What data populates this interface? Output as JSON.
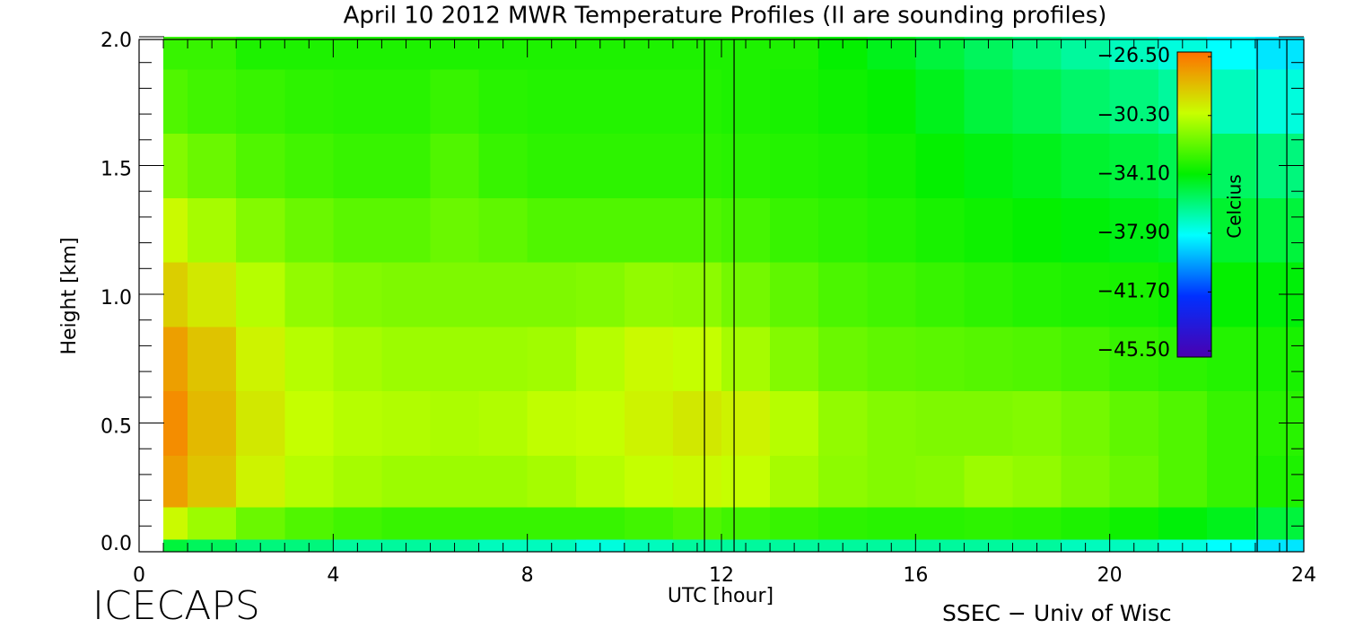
{
  "chart_data": {
    "type": "contour",
    "title": "April 10 2012 MWR Temperature Profiles (II are sounding profiles)",
    "x_label": "UTC [hour]",
    "y_label": "Height [km]",
    "annotations": [
      "ICECAPS",
      "SSEC − Univ of Wisc"
    ],
    "xlim": [
      0,
      24
    ],
    "xticks": [
      0,
      4,
      8,
      12,
      16,
      20,
      24
    ],
    "ylim": [
      0,
      2
    ],
    "yticks": [
      {
        "value": 0,
        "label": "0.0"
      },
      0.5,
      {
        "value": 1,
        "label": "1.0"
      },
      1.5,
      {
        "value": 2,
        "label": "2.0"
      }
    ],
    "minor_ticks": true,
    "x": [
      0.5,
      1.5,
      2.5,
      3.5,
      4.5,
      5.5,
      6.5,
      7.5,
      8.5,
      9.5,
      10.5,
      11.5,
      12.5,
      13.5,
      14.5,
      15.5,
      16.5,
      17.5,
      18.5,
      19.5,
      20.5,
      21.5,
      22.5,
      23.5
    ],
    "y": [
      0,
      0.1,
      0.25,
      0.5,
      0.75,
      1.0,
      1.25,
      1.5,
      1.75,
      2.0
    ],
    "z": [
      [
        -35,
        -35.5,
        -36,
        -36,
        -36.5,
        -36.5,
        -36.5,
        -37,
        -37,
        -37.5,
        -37,
        -36.5,
        -36.5,
        -36.5,
        -36.5,
        -36.5,
        -36.5,
        -36.5,
        -36.5,
        -37,
        -37,
        -37.5,
        -38,
        -38.5
      ],
      [
        -30,
        -31,
        -32,
        -32.5,
        -32.8,
        -33,
        -33,
        -33,
        -33,
        -33,
        -32.8,
        -32.5,
        -32.8,
        -33,
        -33.2,
        -33.3,
        -33.3,
        -33.2,
        -33.3,
        -33.5,
        -33.8,
        -34.2,
        -34.5,
        -35
      ],
      [
        -27.5,
        -28.5,
        -29.8,
        -30.5,
        -30.8,
        -31,
        -31,
        -31,
        -30.8,
        -30.5,
        -30.2,
        -30,
        -30.2,
        -30.8,
        -31.3,
        -31.5,
        -31.4,
        -31,
        -31.2,
        -31.6,
        -32,
        -32.5,
        -33,
        -33.5
      ],
      [
        -27,
        -28.2,
        -29.5,
        -30.2,
        -30.5,
        -30.6,
        -30.7,
        -30.6,
        -30.3,
        -30.2,
        -29.8,
        -29.5,
        -29.8,
        -30.5,
        -31.2,
        -31.5,
        -31.6,
        -31.6,
        -31.5,
        -31.8,
        -32.2,
        -32.5,
        -33,
        -33.3
      ],
      [
        -27.5,
        -28.5,
        -29.8,
        -30.5,
        -30.8,
        -31,
        -31,
        -31,
        -30.9,
        -30.5,
        -30,
        -30.2,
        -30.8,
        -31.5,
        -32,
        -32.2,
        -32.3,
        -32.4,
        -32.5,
        -32.7,
        -33,
        -33.2,
        -33.4,
        -33.6
      ],
      [
        -28.8,
        -29.5,
        -30.5,
        -31.2,
        -31.5,
        -31.6,
        -31.6,
        -31.6,
        -31.6,
        -31.5,
        -31.2,
        -31.3,
        -31.8,
        -32.2,
        -32.6,
        -32.8,
        -33,
        -33.2,
        -33.4,
        -33.5,
        -33.6,
        -33.8,
        -34,
        -34.2
      ],
      [
        -30,
        -30.8,
        -31.5,
        -32,
        -32.3,
        -32.3,
        -32,
        -32.2,
        -32.5,
        -32.5,
        -32.5,
        -32.5,
        -32.7,
        -33,
        -33.2,
        -33.4,
        -33.6,
        -33.8,
        -34,
        -34.2,
        -34.4,
        -34.6,
        -34.8,
        -35
      ],
      [
        -31.5,
        -32,
        -32.5,
        -32.8,
        -33,
        -33,
        -32.5,
        -33,
        -33.2,
        -33.2,
        -33.2,
        -33.2,
        -33.3,
        -33.4,
        -33.5,
        -33.7,
        -34,
        -34.3,
        -34.5,
        -34.8,
        -35,
        -35.3,
        -35.6,
        -36
      ],
      [
        -32.5,
        -32.8,
        -33,
        -33.2,
        -33.3,
        -33.3,
        -33,
        -33.3,
        -33.4,
        -33.4,
        -33.4,
        -33.4,
        -33.5,
        -33.6,
        -33.8,
        -34,
        -34.5,
        -35,
        -35.3,
        -35.7,
        -36,
        -36.5,
        -37,
        -37.5
      ],
      [
        -33,
        -33,
        -33.5,
        -33.5,
        -33.5,
        -33.5,
        -33.5,
        -33.5,
        -33.5,
        -33.5,
        -33.5,
        -33.5,
        -33.5,
        -33.5,
        -34,
        -34.5,
        -35,
        -35.5,
        -36,
        -36.5,
        -37,
        -37.5,
        -38,
        -38.5
      ]
    ],
    "soundings": [
      11.65,
      12.26,
      23.04,
      23.65
    ],
    "zlim": [
      -45.9,
      -26.2
    ],
    "colormap": [
      "#4a00b0",
      "#0030ff",
      "#00ffff",
      "#00f000",
      "#c8ff00",
      "#ff7000"
    ],
    "colorbar": {
      "label": "Celcius",
      "ticks": [
        {
          "value": -26.5,
          "label": "−26.50"
        },
        {
          "value": -30.3,
          "label": "−30.30"
        },
        {
          "value": -34.1,
          "label": "−34.10"
        },
        {
          "value": -37.9,
          "label": "−37.90"
        },
        {
          "value": -41.7,
          "label": "−41.70"
        },
        {
          "value": -45.5,
          "label": "−45.50"
        }
      ]
    }
  }
}
